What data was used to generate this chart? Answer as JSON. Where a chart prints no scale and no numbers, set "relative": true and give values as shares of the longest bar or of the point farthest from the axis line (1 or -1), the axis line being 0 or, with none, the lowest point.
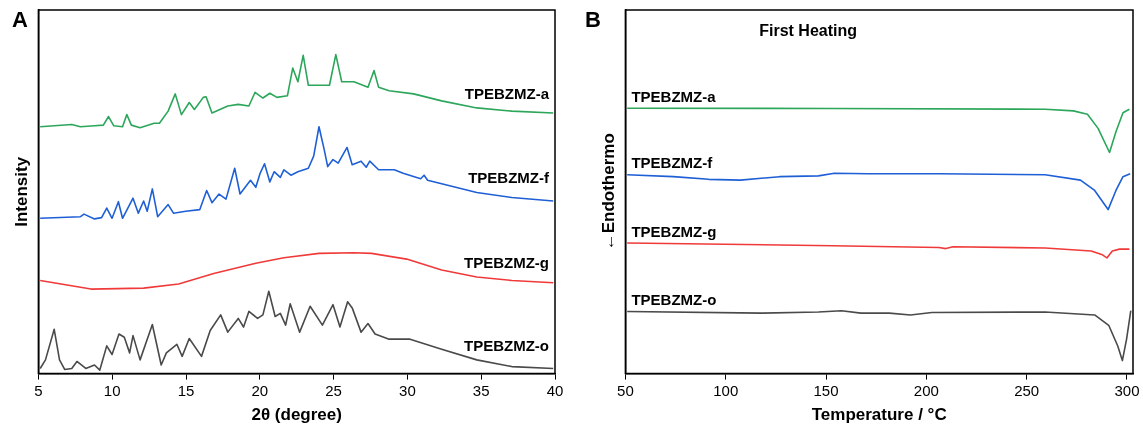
{
  "chart_data": [
    {
      "type": "line",
      "relative": true,
      "xlabel": "2θ (degree)",
      "ylabel": "Intensity",
      "annotations": [
        "A"
      ],
      "xlim": [
        5,
        40
      ],
      "xticks": [
        5,
        10,
        15,
        20,
        25,
        30,
        35,
        40
      ],
      "tick_labels": "x",
      "grid": false,
      "legend": false,
      "series": [
        {
          "name": "TPEBZMZ-a",
          "color": "#2ca65a",
          "x": [
            5.12,
            7.26,
            7.85,
            8.8,
            9.4,
            9.75,
            10.11,
            10.7,
            10.99,
            11.3,
            11.89,
            12.84,
            13.2,
            13.79,
            14.27,
            14.69,
            15.22,
            15.57,
            16.17,
            16.36,
            16.76,
            17.83,
            18.54,
            19.26,
            19.68,
            20.21,
            20.68,
            21.16,
            21.87,
            22.23,
            22.58,
            22.94,
            23.29,
            24.01,
            24.72,
            25.15,
            25.55,
            26.38,
            27.33,
            27.74,
            28.05,
            28.76,
            30.42,
            32.32,
            34.7,
            37.07,
            39.88
          ],
          "values": [
            0.774,
            0.781,
            0.774,
            0.777,
            0.779,
            0.806,
            0.777,
            0.774,
            0.812,
            0.779,
            0.771,
            0.785,
            0.785,
            0.823,
            0.877,
            0.812,
            0.85,
            0.828,
            0.866,
            0.868,
            0.817,
            0.839,
            0.844,
            0.839,
            0.882,
            0.864,
            0.879,
            0.866,
            0.871,
            0.958,
            0.915,
            0.998,
            0.904,
            0.904,
            0.904,
            1.0,
            0.915,
            0.915,
            0.898,
            0.95,
            0.898,
            0.887,
            0.877,
            0.855,
            0.833,
            0.823,
            0.817
          ]
        },
        {
          "name": "TPEBZMZ-f",
          "color": "#1f5fd6",
          "x": [
            5.12,
            7.85,
            8.09,
            8.8,
            9.28,
            9.63,
            9.99,
            10.42,
            10.7,
            11.41,
            11.77,
            12.13,
            12.37,
            12.72,
            13.08,
            13.79,
            14.15,
            14.98,
            15.93,
            16.4,
            16.76,
            17.24,
            17.71,
            18.3,
            18.66,
            19.37,
            19.73,
            20.02,
            20.32,
            20.68,
            20.97,
            21.39,
            21.63,
            22.11,
            22.58,
            23.29,
            23.65,
            24.01,
            24.36,
            24.6,
            24.96,
            25.31,
            25.91,
            26.26,
            26.86,
            27.21,
            27.45,
            28.05,
            29.11,
            29.71,
            30.9,
            31.13,
            31.37,
            32.32,
            34.7,
            37.07,
            39.88
          ],
          "values": [
            0.487,
            0.492,
            0.5,
            0.485,
            0.489,
            0.519,
            0.487,
            0.539,
            0.487,
            0.55,
            0.503,
            0.541,
            0.509,
            0.579,
            0.492,
            0.53,
            0.503,
            0.509,
            0.514,
            0.574,
            0.536,
            0.563,
            0.547,
            0.644,
            0.563,
            0.606,
            0.584,
            0.628,
            0.658,
            0.601,
            0.633,
            0.615,
            0.639,
            0.622,
            0.633,
            0.644,
            0.682,
            0.774,
            0.703,
            0.649,
            0.671,
            0.66,
            0.709,
            0.655,
            0.666,
            0.647,
            0.666,
            0.639,
            0.639,
            0.628,
            0.611,
            0.622,
            0.606,
            0.595,
            0.568,
            0.552,
            0.541
          ]
        },
        {
          "name": "TPEBZMZ-g",
          "color": "#f03a3a",
          "x": [
            5.12,
            8.56,
            12.13,
            14.5,
            16.88,
            19.73,
            21.63,
            24.01,
            26.38,
            27.57,
            29.95,
            32.32,
            34.7,
            37.07,
            39.88
          ],
          "values": [
            0.292,
            0.265,
            0.268,
            0.281,
            0.314,
            0.346,
            0.363,
            0.377,
            0.379,
            0.377,
            0.359,
            0.325,
            0.303,
            0.292,
            0.285
          ]
        },
        {
          "name": "TPEBZMZ-o",
          "color": "#4a4a4a",
          "x": [
            5.12,
            5.48,
            6.07,
            6.43,
            6.78,
            7.26,
            7.61,
            8.21,
            8.8,
            9.16,
            9.63,
            9.99,
            10.46,
            10.82,
            11.18,
            11.41,
            11.89,
            12.72,
            13.32,
            13.67,
            14.38,
            14.74,
            15.22,
            16.05,
            16.64,
            17.35,
            17.83,
            18.54,
            18.9,
            19.26,
            19.85,
            20.21,
            20.61,
            21.04,
            21.39,
            21.75,
            22.06,
            22.7,
            23.41,
            24.24,
            24.96,
            25.43,
            25.95,
            26.26,
            26.86,
            27.33,
            27.81,
            28.76,
            30.18,
            32.32,
            34.7,
            37.07,
            39.88
          ],
          "values": [
            0.016,
            0.043,
            0.139,
            0.043,
            0.013,
            0.016,
            0.038,
            0.016,
            0.027,
            0.011,
            0.087,
            0.06,
            0.124,
            0.114,
            0.065,
            0.119,
            0.043,
            0.154,
            0.027,
            0.065,
            0.092,
            0.054,
            0.11,
            0.054,
            0.135,
            0.184,
            0.13,
            0.173,
            0.146,
            0.195,
            0.173,
            0.184,
            0.258,
            0.179,
            0.189,
            0.152,
            0.219,
            0.13,
            0.211,
            0.152,
            0.216,
            0.146,
            0.225,
            0.206,
            0.13,
            0.157,
            0.124,
            0.108,
            0.108,
            0.076,
            0.043,
            0.022,
            0.016
          ]
        }
      ]
    },
    {
      "type": "line",
      "relative": true,
      "title": "First Heating",
      "xlabel": "Temperature / °C",
      "ylabel": "←Endothermo",
      "annotations": [
        "B"
      ],
      "xlim": [
        50,
        303
      ],
      "xticks": [
        50,
        100,
        150,
        200,
        250,
        300
      ],
      "tick_labels": "x",
      "grid": false,
      "legend": false,
      "series": [
        {
          "name": "TPEBZMZ-a",
          "color": "#2ca65a",
          "x": [
            50.9,
            153.3,
            259.2,
            273.3,
            280.3,
            285.6,
            291.3,
            294.5,
            298.0,
            301.2
          ],
          "values": [
            1.0,
            0.999,
            0.996,
            0.99,
            0.977,
            0.924,
            0.833,
            0.911,
            0.983,
            0.996
          ]
        },
        {
          "name": "TPEBZMZ-f",
          "color": "#1f5fd6",
          "x": [
            50.9,
            73.8,
            91.5,
            107.4,
            126.8,
            146.2,
            154.2,
            170.9,
            206.2,
            259.2,
            276.8,
            283.9,
            290.6,
            294.5,
            298.0,
            301.6
          ],
          "values": [
            0.749,
            0.742,
            0.732,
            0.729,
            0.742,
            0.745,
            0.755,
            0.753,
            0.753,
            0.749,
            0.729,
            0.69,
            0.618,
            0.69,
            0.742,
            0.753
          ]
        },
        {
          "name": "TPEBZMZ-g",
          "color": "#f03a3a",
          "x": [
            50.9,
            153.3,
            206.2,
            209.7,
            213.3,
            259.2,
            282.1,
            287.4,
            290.0,
            292.7,
            296.3,
            301.2
          ],
          "values": [
            0.492,
            0.482,
            0.475,
            0.471,
            0.478,
            0.473,
            0.462,
            0.449,
            0.436,
            0.462,
            0.469,
            0.469
          ]
        },
        {
          "name": "TPEBZMZ-o",
          "color": "#4a4a4a",
          "x": [
            50.9,
            118.0,
            146.2,
            157.7,
            167.4,
            181.5,
            192.1,
            202.7,
            259.2,
            283.9,
            290.9,
            295.4,
            297.7,
            299.8,
            301.9
          ],
          "values": [
            0.234,
            0.228,
            0.232,
            0.237,
            0.228,
            0.228,
            0.221,
            0.23,
            0.232,
            0.221,
            0.182,
            0.104,
            0.049,
            0.13,
            0.237
          ]
        }
      ]
    }
  ]
}
